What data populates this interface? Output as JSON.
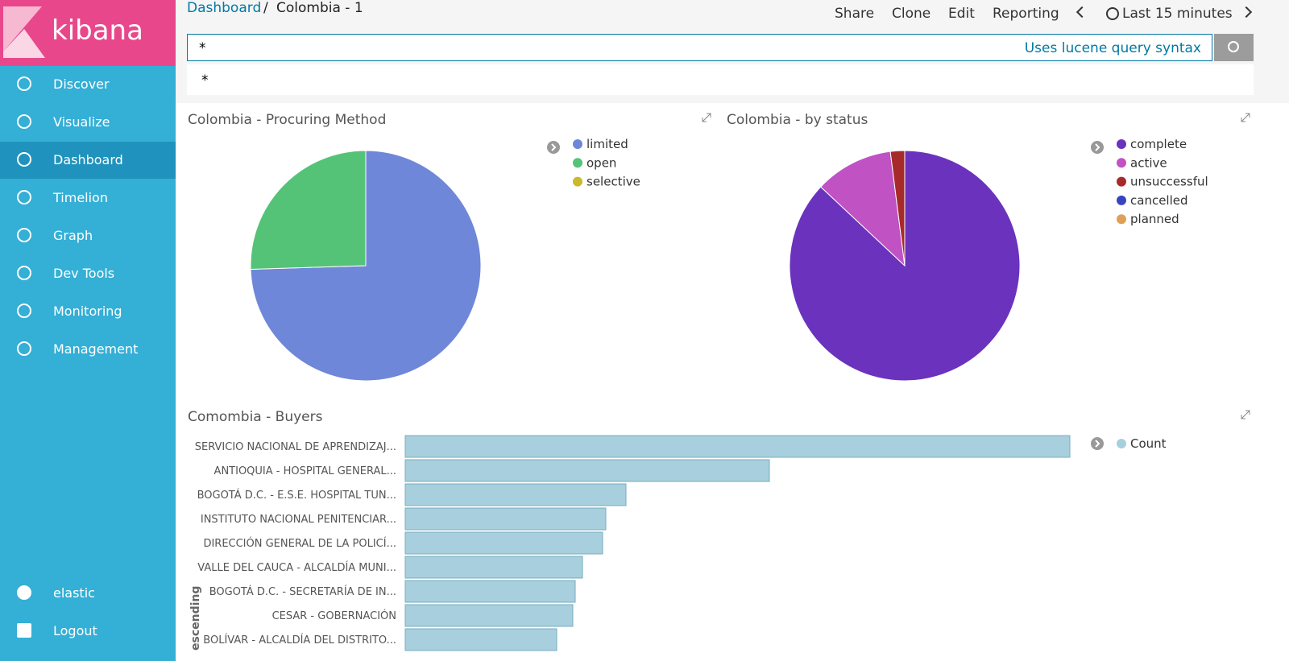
{
  "sidebar": {
    "brand": "kibana",
    "items": [
      "Discover",
      "Visualize",
      "Dashboard",
      "Timelion",
      "Graph",
      "Dev Tools",
      "Monitoring",
      "Management"
    ],
    "active": 2,
    "bottom": [
      "elastic",
      "Logout"
    ]
  },
  "header": {
    "breadcrumb": [
      "Dashboard",
      "/",
      "Colombia - 1"
    ],
    "menu": [
      "Share",
      "Clone",
      "Edit",
      "Reporting"
    ],
    "time": "Last 15 minutes"
  },
  "query": {
    "value": "*",
    "hint": "Uses lucene query syntax",
    "suggestion": "*"
  },
  "chart_data": [
    {
      "type": "pie",
      "title": "Colombia - Procuring Method",
      "categories": [
        "limited",
        "open",
        "selective"
      ],
      "values": [
        74.5,
        25.5,
        0
      ],
      "colors": [
        "#6f87d8",
        "#54c377",
        "#c9b92f"
      ]
    },
    {
      "type": "pie",
      "title": "Colombia - by status",
      "categories": [
        "complete",
        "active",
        "unsuccessful",
        "cancelled",
        "planned"
      ],
      "values": [
        87,
        11,
        2,
        0,
        0
      ],
      "colors": [
        "#6a32bd",
        "#c052c4",
        "#a72a2a",
        "#3744c1",
        "#dea058"
      ]
    },
    {
      "type": "bar",
      "orientation": "horizontal",
      "title": "Comombia - Buyers",
      "y_label": "escending",
      "categories": [
        "SERVICIO NACIONAL DE APRENDIZAJ...",
        "ANTIOQUIA - HOSPITAL GENERAL...",
        "BOGOTÁ D.C. - E.S.E. HOSPITAL TUN...",
        "INSTITUTO NACIONAL PENITENCIAR...",
        "DIRECCIÓN GENERAL DE LA POLICÍ...",
        "VALLE DEL CAUCA - ALCALDÍA MUNI...",
        "BOGOTÁ D.C. - SECRETARÍA DE IN...",
        "CESAR - GOBERNACIÓN",
        "BOLÍVAR - ALCALDÍA DEL DISTRITO..."
      ],
      "series": [
        {
          "name": "Count",
          "color": "#a8cfdd",
          "values": [
            825,
            452,
            274,
            249,
            245,
            220,
            211,
            208,
            188
          ]
        }
      ]
    }
  ]
}
